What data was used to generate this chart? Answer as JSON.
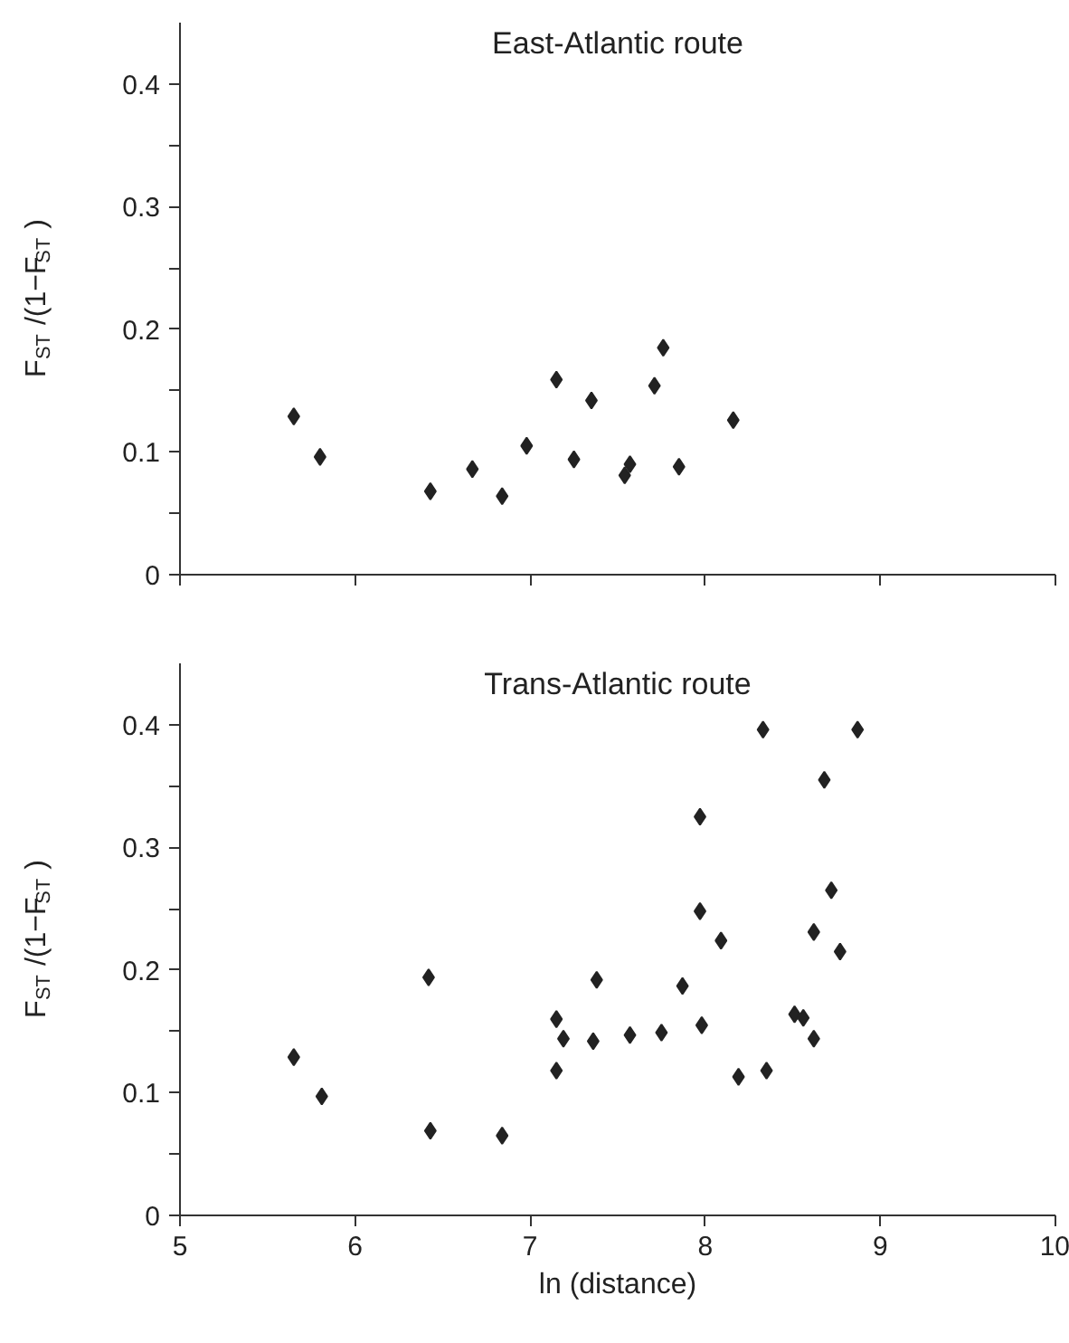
{
  "chart_data": [
    {
      "type": "scatter",
      "title": "East-Atlantic route",
      "ylabel": "F$_{ST}$/(1−F$_{ST}$)",
      "x": [
        5.65,
        5.8,
        6.43,
        6.67,
        6.84,
        6.98,
        7.15,
        7.25,
        7.35,
        7.54,
        7.57,
        7.71,
        7.76,
        7.85,
        8.16
      ],
      "series": [
        {
          "color": "#222222",
          "values": [
            0.129,
            0.096,
            0.068,
            0.086,
            0.064,
            0.105,
            0.159,
            0.094,
            0.142,
            0.081,
            0.09,
            0.154,
            0.185,
            0.088,
            0.126
          ]
        }
      ],
      "xlim": [
        5,
        10
      ],
      "xticks": [
        5,
        6,
        7,
        8,
        9,
        10
      ],
      "ylim": [
        0,
        0.45
      ],
      "yticks": [
        0,
        {
          "value": 0.05,
          "label": null
        },
        0.1,
        {
          "value": 0.15,
          "label": null
        },
        0.2,
        {
          "value": 0.25,
          "label": null
        },
        0.3,
        {
          "value": 0.35,
          "label": null
        },
        0.4
      ],
      "tick_labels": "y",
      "marker": "diamond",
      "grid": false
    },
    {
      "type": "scatter",
      "title": "Trans-Atlantic route",
      "ylabel": "F$_{ST}$/(1−F$_{ST}$)",
      "xlabel": "ln (distance)",
      "x": [
        5.65,
        5.81,
        6.42,
        6.43,
        6.84,
        7.15,
        7.19,
        7.15,
        7.36,
        7.38,
        7.57,
        7.75,
        7.87,
        7.97,
        7.97,
        7.98,
        8.09,
        8.19,
        8.33,
        8.35,
        8.51,
        8.56,
        8.62,
        8.62,
        8.68,
        8.72,
        8.77,
        8.87
      ],
      "series": [
        {
          "color": "#222222",
          "values": [
            0.129,
            0.097,
            0.194,
            0.069,
            0.065,
            0.16,
            0.144,
            0.118,
            0.142,
            0.192,
            0.147,
            0.149,
            0.187,
            0.325,
            0.248,
            0.155,
            0.224,
            0.113,
            0.396,
            0.118,
            0.164,
            0.161,
            0.231,
            0.144,
            0.355,
            0.265,
            0.215,
            0.396
          ]
        }
      ],
      "xlim": [
        5,
        10
      ],
      "xticks": [
        5,
        6,
        7,
        8,
        9,
        10
      ],
      "ylim": [
        0,
        0.45
      ],
      "yticks": [
        0,
        {
          "value": 0.05,
          "label": null
        },
        0.1,
        {
          "value": 0.15,
          "label": null
        },
        0.2,
        {
          "value": 0.25,
          "label": null
        },
        0.3,
        {
          "value": 0.35,
          "label": null
        },
        0.4
      ],
      "marker": "diamond",
      "grid": false
    }
  ]
}
